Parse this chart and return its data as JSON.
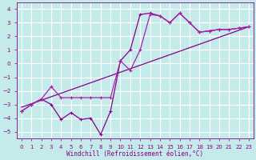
{
  "xlabel": "Windchill (Refroidissement éolien,°C)",
  "bg_color": "#c5eaea",
  "grid_color": "#ffffff",
  "line_color": "#880088",
  "x_data": [
    0,
    1,
    2,
    3,
    4,
    5,
    6,
    7,
    8,
    9,
    10,
    11,
    12,
    13,
    14,
    15,
    16,
    17,
    18,
    19,
    20,
    21,
    22,
    23
  ],
  "y_wiggly": [
    -3.5,
    -3.0,
    -2.6,
    -3.0,
    -4.1,
    -3.6,
    -4.1,
    -4.0,
    -5.2,
    -3.5,
    0.2,
    1.0,
    3.6,
    3.7,
    3.5,
    3.0,
    3.7,
    3.0,
    2.3,
    2.4,
    2.5,
    2.5,
    2.6,
    2.7
  ],
  "y_smooth": [
    -3.5,
    -3.0,
    -2.6,
    -1.7,
    -2.5,
    -2.5,
    -2.5,
    -2.5,
    -2.5,
    -2.5,
    0.2,
    -0.5,
    1.0,
    3.6,
    3.5,
    3.0,
    3.7,
    3.0,
    2.3,
    2.4,
    2.5,
    2.5,
    2.6,
    2.7
  ],
  "trend_x": [
    0,
    23
  ],
  "trend_y": [
    -3.2,
    2.7
  ],
  "ylim": [
    -5.5,
    4.5
  ],
  "xlim": [
    -0.5,
    23.5
  ],
  "yticks": [
    -5,
    -4,
    -3,
    -2,
    -1,
    0,
    1,
    2,
    3,
    4
  ],
  "xticks": [
    0,
    1,
    2,
    3,
    4,
    5,
    6,
    7,
    8,
    9,
    10,
    11,
    12,
    13,
    14,
    15,
    16,
    17,
    18,
    19,
    20,
    21,
    22,
    23
  ],
  "xlabel_fontsize": 5.5,
  "tick_fontsize": 5,
  "linewidth": 0.9,
  "marker_size": 3,
  "marker_ew": 0.8
}
